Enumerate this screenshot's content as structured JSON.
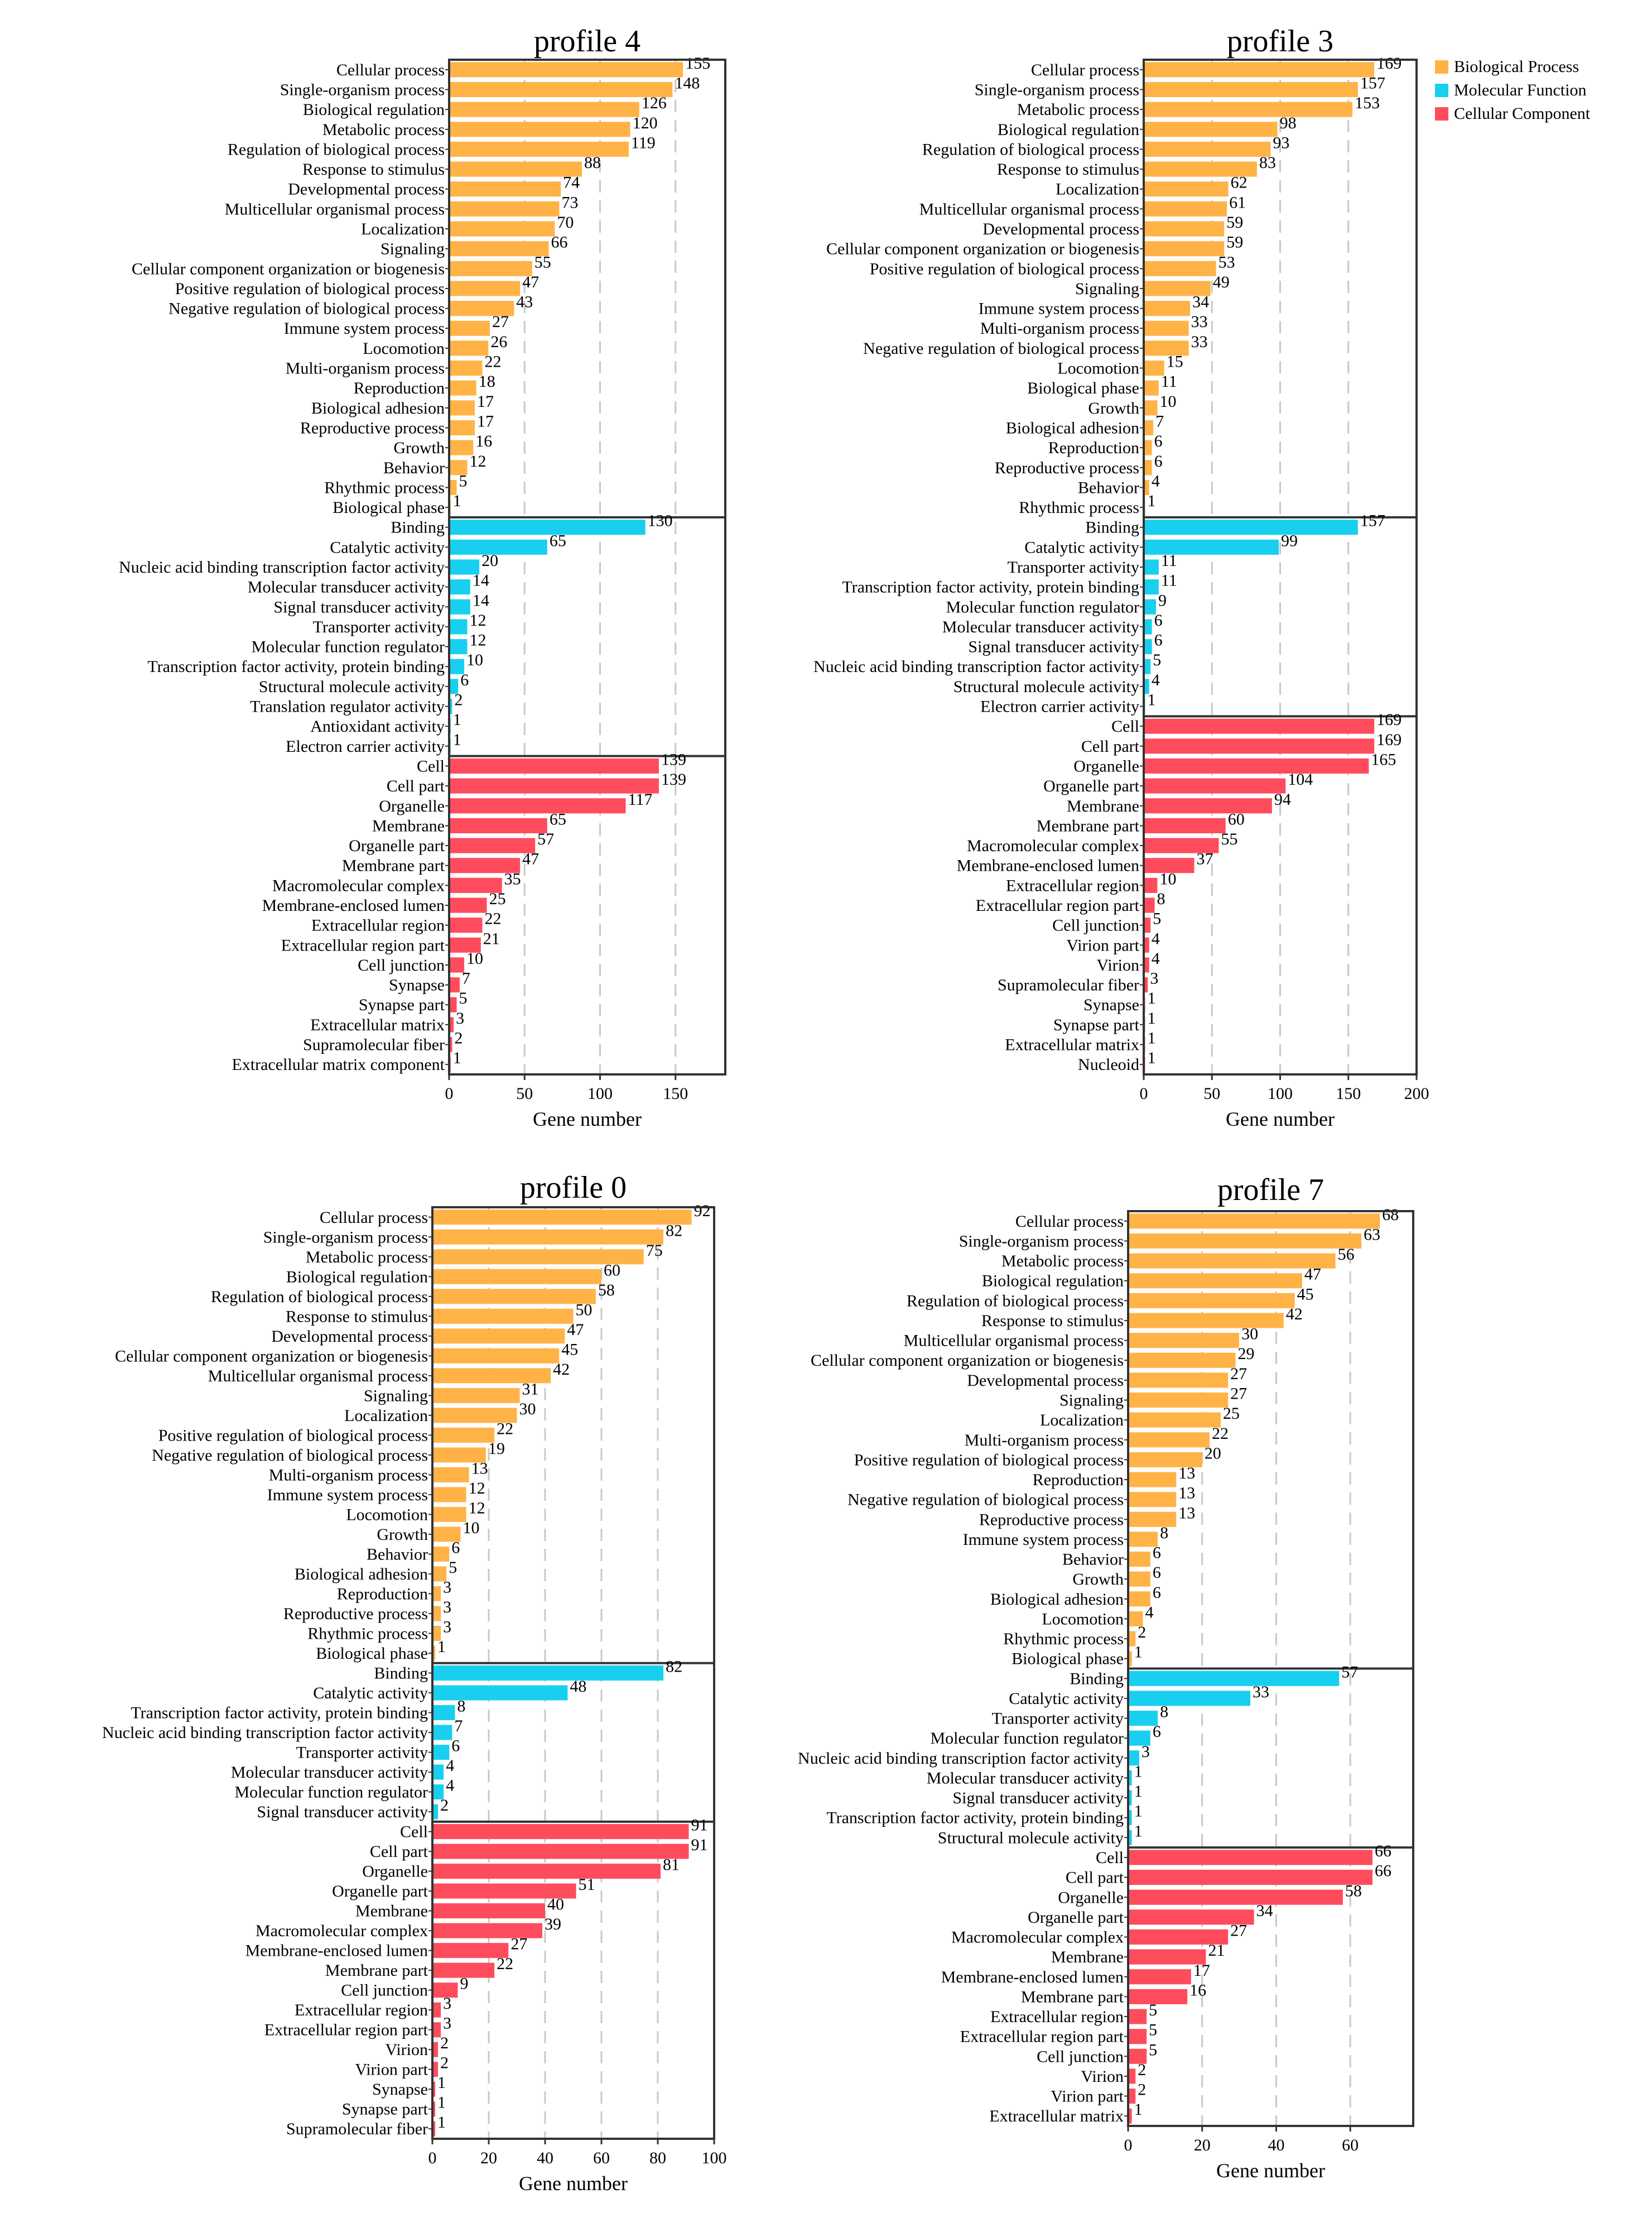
{
  "colors": {
    "biological_process": "#FFB347",
    "molecular_function": "#19CFF0",
    "cellular_component": "#FF4C5C",
    "grid": "#C8C8C8",
    "frame": "#333333"
  },
  "legend": {
    "items": [
      {
        "label": "Biological Process",
        "color": "#FFB347"
      },
      {
        "label": "Molecular Function",
        "color": "#19CFF0"
      },
      {
        "label": "Cellular Component",
        "color": "#FF4C5C"
      }
    ]
  },
  "chart_data": [
    {
      "type": "bar",
      "orientation": "horizontal",
      "title": "profile 4",
      "xlabel": "Gene number",
      "ylabel": "",
      "xlim": [
        0,
        183
      ],
      "xticks": [
        0,
        50,
        100,
        150
      ],
      "grid": "vertical dashed",
      "groups": [
        {
          "name": "Biological Process",
          "color": "#FFB347",
          "categories": [
            "Cellular process",
            "Single-organism process",
            "Biological regulation",
            "Metabolic process",
            "Regulation of biological process",
            "Response to stimulus",
            "Developmental process",
            "Multicellular organismal process",
            "Localization",
            "Signaling",
            "Cellular component organization or biogenesis",
            "Positive regulation of biological process",
            "Negative regulation of biological process",
            "Immune system process",
            "Locomotion",
            "Multi-organism process",
            "Reproduction",
            "Biological adhesion",
            "Reproductive process",
            "Growth",
            "Behavior",
            "Rhythmic process",
            "Biological phase"
          ],
          "values": [
            155,
            148,
            126,
            120,
            119,
            88,
            74,
            73,
            70,
            66,
            55,
            47,
            43,
            27,
            26,
            22,
            18,
            17,
            17,
            16,
            12,
            5,
            1
          ]
        },
        {
          "name": "Molecular Function",
          "color": "#19CFF0",
          "categories": [
            "Binding",
            "Catalytic activity",
            "Nucleic acid binding transcription factor activity",
            "Molecular transducer activity",
            "Signal transducer activity",
            "Transporter activity",
            "Molecular function regulator",
            "Transcription factor activity, protein binding",
            "Structural molecule activity",
            "Translation regulator activity",
            "Antioxidant activity",
            "Electron carrier activity"
          ],
          "values": [
            130,
            65,
            20,
            14,
            14,
            12,
            12,
            10,
            6,
            2,
            1,
            1
          ]
        },
        {
          "name": "Cellular Component",
          "color": "#FF4C5C",
          "categories": [
            "Cell",
            "Cell part",
            "Organelle",
            "Membrane",
            "Organelle part",
            "Membrane part",
            "Macromolecular complex",
            "Membrane-enclosed lumen",
            "Extracellular region",
            "Extracellular region part",
            "Cell junction",
            "Synapse",
            "Synapse part",
            "Extracellular matrix",
            "Supramolecular fiber",
            "Extracellular matrix component"
          ],
          "values": [
            139,
            139,
            117,
            65,
            57,
            47,
            35,
            25,
            22,
            21,
            10,
            7,
            5,
            3,
            2,
            1
          ]
        }
      ]
    },
    {
      "type": "bar",
      "orientation": "horizontal",
      "title": "profile 3",
      "xlabel": "Gene number",
      "ylabel": "",
      "xlim": [
        0,
        200
      ],
      "xticks": [
        0,
        50,
        100,
        150,
        200
      ],
      "grid": "vertical dashed",
      "groups": [
        {
          "name": "Biological Process",
          "color": "#FFB347",
          "categories": [
            "Cellular process",
            "Single-organism process",
            "Metabolic process",
            "Biological regulation",
            "Regulation of biological process",
            "Response to stimulus",
            "Localization",
            "Multicellular organismal process",
            "Developmental process",
            "Cellular component organization or biogenesis",
            "Positive regulation of biological process",
            "Signaling",
            "Immune system process",
            "Multi-organism process",
            "Negative regulation of biological process",
            "Locomotion",
            "Biological phase",
            "Growth",
            "Biological adhesion",
            "Reproduction",
            "Reproductive process",
            "Behavior",
            "Rhythmic process"
          ],
          "values": [
            169,
            157,
            153,
            98,
            93,
            83,
            62,
            61,
            59,
            59,
            53,
            49,
            34,
            33,
            33,
            15,
            11,
            10,
            7,
            6,
            6,
            4,
            1
          ]
        },
        {
          "name": "Molecular Function",
          "color": "#19CFF0",
          "categories": [
            "Binding",
            "Catalytic activity",
            "Transporter activity",
            "Transcription factor activity, protein binding",
            "Molecular function regulator",
            "Molecular transducer activity",
            "Signal transducer activity",
            "Nucleic acid binding transcription factor activity",
            "Structural molecule activity",
            "Electron carrier activity"
          ],
          "values": [
            157,
            99,
            11,
            11,
            9,
            6,
            6,
            5,
            4,
            1
          ]
        },
        {
          "name": "Cellular Component",
          "color": "#FF4C5C",
          "categories": [
            "Cell",
            "Cell part",
            "Organelle",
            "Organelle part",
            "Membrane",
            "Membrane part",
            "Macromolecular complex",
            "Membrane-enclosed lumen",
            "Extracellular region",
            "Extracellular region part",
            "Cell junction",
            "Virion part",
            "Virion",
            "Supramolecular fiber",
            "Synapse",
            "Synapse part",
            "Extracellular matrix",
            "Nucleoid"
          ],
          "values": [
            169,
            169,
            165,
            104,
            94,
            60,
            55,
            37,
            10,
            8,
            5,
            4,
            4,
            3,
            1,
            1,
            1,
            1
          ]
        }
      ]
    },
    {
      "type": "bar",
      "orientation": "horizontal",
      "title": "profile 0",
      "xlabel": "Gene number",
      "ylabel": "",
      "xlim": [
        0,
        100
      ],
      "xticks": [
        0,
        20,
        40,
        60,
        80,
        100
      ],
      "grid": "vertical dashed",
      "groups": [
        {
          "name": "Biological Process",
          "color": "#FFB347",
          "categories": [
            "Cellular process",
            "Single-organism process",
            "Metabolic process",
            "Biological regulation",
            "Regulation of biological process",
            "Response to stimulus",
            "Developmental process",
            "Cellular component organization or biogenesis",
            "Multicellular organismal process",
            "Signaling",
            "Localization",
            "Positive regulation of biological process",
            "Negative regulation of biological process",
            "Multi-organism process",
            "Immune system process",
            "Locomotion",
            "Growth",
            "Behavior",
            "Biological adhesion",
            "Reproduction",
            "Reproductive process",
            "Rhythmic process",
            "Biological phase"
          ],
          "values": [
            92,
            82,
            75,
            60,
            58,
            50,
            47,
            45,
            42,
            31,
            30,
            22,
            19,
            13,
            12,
            12,
            10,
            6,
            5,
            3,
            3,
            3,
            1
          ]
        },
        {
          "name": "Molecular Function",
          "color": "#19CFF0",
          "categories": [
            "Binding",
            "Catalytic activity",
            "Transcription factor activity, protein binding",
            "Nucleic acid binding transcription factor activity",
            "Transporter activity",
            "Molecular transducer activity",
            "Molecular function regulator",
            "Signal transducer activity"
          ],
          "values": [
            82,
            48,
            8,
            7,
            6,
            4,
            4,
            2
          ]
        },
        {
          "name": "Cellular Component",
          "color": "#FF4C5C",
          "categories": [
            "Cell",
            "Cell part",
            "Organelle",
            "Organelle part",
            "Membrane",
            "Macromolecular complex",
            "Membrane-enclosed lumen",
            "Membrane part",
            "Cell junction",
            "Extracellular region",
            "Extracellular region part",
            "Virion",
            "Virion part",
            "Synapse",
            "Synapse part",
            "Supramolecular fiber"
          ],
          "values": [
            91,
            91,
            81,
            51,
            40,
            39,
            27,
            22,
            9,
            3,
            3,
            2,
            2,
            1,
            1,
            1
          ]
        }
      ]
    },
    {
      "type": "bar",
      "orientation": "horizontal",
      "title": "profile 7",
      "xlabel": "Gene number",
      "ylabel": "",
      "xlim": [
        0,
        77
      ],
      "xticks": [
        0,
        20,
        40,
        60
      ],
      "grid": "vertical dashed",
      "groups": [
        {
          "name": "Biological Process",
          "color": "#FFB347",
          "categories": [
            "Cellular process",
            "Single-organism process",
            "Metabolic process",
            "Biological regulation",
            "Regulation of biological process",
            "Response to stimulus",
            "Multicellular organismal process",
            "Cellular component organization or biogenesis",
            "Developmental process",
            "Signaling",
            "Localization",
            "Multi-organism process",
            "Positive regulation of biological process",
            "Reproduction",
            "Negative regulation of biological process",
            "Reproductive process",
            "Immune system process",
            "Behavior",
            "Growth",
            "Biological adhesion",
            "Locomotion",
            "Rhythmic process",
            "Biological phase"
          ],
          "values": [
            68,
            63,
            56,
            47,
            45,
            42,
            30,
            29,
            27,
            27,
            25,
            22,
            20,
            13,
            13,
            13,
            8,
            6,
            6,
            6,
            4,
            2,
            1
          ]
        },
        {
          "name": "Molecular Function",
          "color": "#19CFF0",
          "categories": [
            "Binding",
            "Catalytic activity",
            "Transporter activity",
            "Molecular function regulator",
            "Nucleic acid binding transcription factor activity",
            "Molecular transducer activity",
            "Signal transducer activity",
            "Transcription factor activity, protein binding",
            "Structural molecule activity"
          ],
          "values": [
            57,
            33,
            8,
            6,
            3,
            1,
            1,
            1,
            1
          ]
        },
        {
          "name": "Cellular Component",
          "color": "#FF4C5C",
          "categories": [
            "Cell",
            "Cell part",
            "Organelle",
            "Organelle part",
            "Macromolecular complex",
            "Membrane",
            "Membrane-enclosed lumen",
            "Membrane part",
            "Extracellular region",
            "Extracellular region part",
            "Cell junction",
            "Virion",
            "Virion part",
            "Extracellular matrix"
          ],
          "values": [
            66,
            66,
            58,
            34,
            27,
            21,
            17,
            16,
            5,
            5,
            5,
            2,
            2,
            1
          ]
        }
      ]
    }
  ]
}
